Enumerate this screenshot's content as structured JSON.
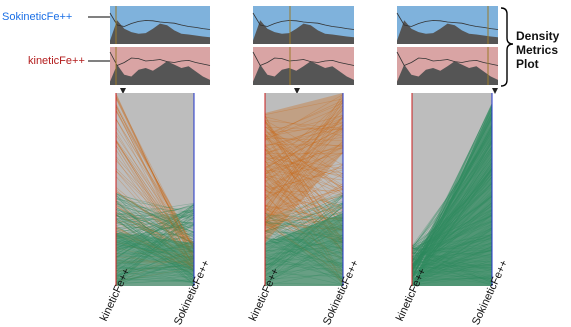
{
  "row_labels": {
    "top": "SokineticFe++",
    "bottom": "kineticFe++"
  },
  "colors": {
    "top_label": "#1a6fe6",
    "bottom_label": "#b31c1c",
    "density_top_bg": "#7fb2dc",
    "density_bottom_bg": "#d9a4a4",
    "density_fill": "#555555",
    "left_axis": "#c81e1e",
    "right_axis": "#1f32c8",
    "lines_gray": "#bdbdbd",
    "lines_orange": "#c96a1a",
    "lines_green": "#2e8a5e"
  },
  "bracket_label": [
    "Density",
    "Metrics",
    "Plot"
  ],
  "panels": [
    {
      "axis_left": "kineticFe++",
      "axis_right": "SokineticFe++"
    },
    {
      "axis_left": "kineticFe++",
      "axis_right": "SokineticFe++"
    },
    {
      "axis_left": "kineticFe++",
      "axis_right": "SokineticFe++"
    }
  ]
}
